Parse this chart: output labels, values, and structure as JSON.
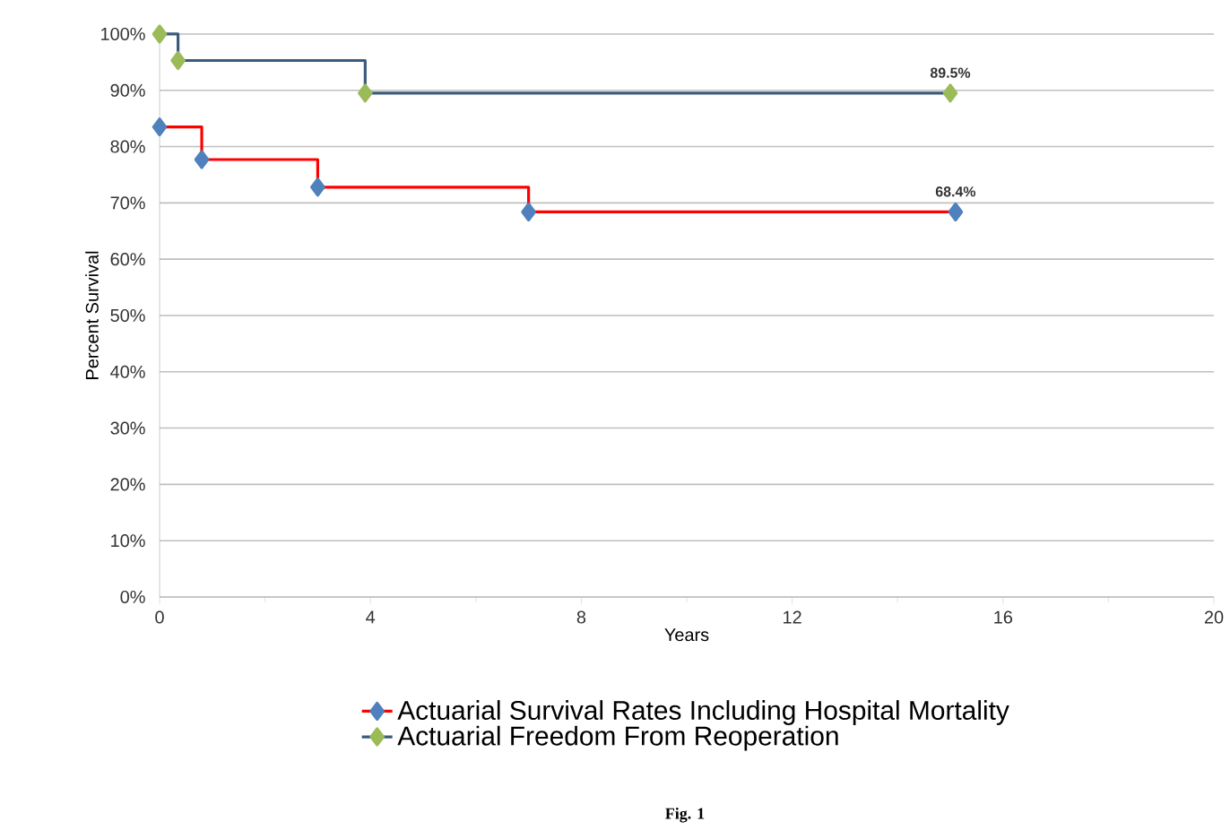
{
  "chart_data": {
    "type": "step",
    "xlabel": "Years",
    "ylabel": "Percent Survival",
    "annotations": [
      "Fig. 1"
    ],
    "xlim": [
      0,
      20
    ],
    "xticks": [
      0,
      4,
      8,
      12,
      16,
      20
    ],
    "ylim": [
      0,
      100
    ],
    "yticks": [
      {
        "value": 0,
        "label": "0%"
      },
      {
        "value": 10,
        "label": "10%"
      },
      {
        "value": 20,
        "label": "20%"
      },
      {
        "value": 30,
        "label": "30%"
      },
      {
        "value": 40,
        "label": "40%"
      },
      {
        "value": 50,
        "label": "50%"
      },
      {
        "value": 60,
        "label": "60%"
      },
      {
        "value": 70,
        "label": "70%"
      },
      {
        "value": 80,
        "label": "80%"
      },
      {
        "value": 90,
        "label": "90%"
      },
      {
        "value": 100,
        "label": "100%"
      }
    ],
    "grid": "y",
    "legend": "bottom",
    "marker": "diamond",
    "series": [
      {
        "name": "Actuarial Survival Rates Including Hospital Mortality",
        "color": "#ff0000",
        "colors": [
          "#4f81bd",
          "#4f81bd",
          "#4f81bd",
          "#4f81bd",
          "#4f81bd"
        ],
        "x": [
          0,
          0.8,
          3,
          7,
          15.1
        ],
        "values": [
          83.5,
          77.7,
          72.8,
          68.4,
          68.4
        ],
        "value_labels": [
          null,
          null,
          null,
          null,
          "68.4%"
        ]
      },
      {
        "name": "Actuarial Freedom From Reoperation",
        "color": "#3b5b7c",
        "colors": [
          "#9bbb59",
          "#9bbb59",
          "#9bbb59",
          "#9bbb59"
        ],
        "x": [
          0,
          0.35,
          3.9,
          15.0
        ],
        "values": [
          100,
          95.3,
          89.5,
          89.5
        ],
        "value_labels": [
          null,
          null,
          null,
          "89.5%"
        ]
      }
    ]
  }
}
